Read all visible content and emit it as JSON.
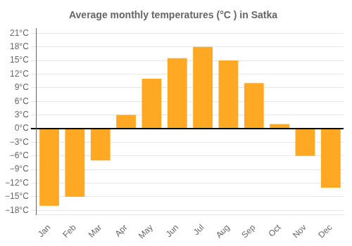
{
  "chart_data": {
    "type": "bar",
    "title": "Average monthly temperatures (°C ) in Satka",
    "categories": [
      "Jan",
      "Feb",
      "Mar",
      "Apr",
      "May",
      "Jun",
      "Jul",
      "Aug",
      "Sep",
      "Oct",
      "Nov",
      "Dec"
    ],
    "values": [
      -17,
      -15,
      -7,
      3,
      11,
      15.5,
      18,
      15,
      10,
      1,
      -6,
      -13
    ],
    "color": "#FFA824",
    "ylim": [
      -19,
      22
    ],
    "yticks": [
      {
        "value": -18,
        "label": "−18°C"
      },
      {
        "value": -15,
        "label": "−15°C"
      },
      {
        "value": -12,
        "label": "−12°C"
      },
      {
        "value": -9,
        "label": "−9°C"
      },
      {
        "value": -6,
        "label": "−6°C"
      },
      {
        "value": -3,
        "label": "−3°C"
      },
      {
        "value": 0,
        "label": "0°C"
      },
      {
        "value": 3,
        "label": "3°C"
      },
      {
        "value": 6,
        "label": "6°C"
      },
      {
        "value": 9,
        "label": "9°C"
      },
      {
        "value": 12,
        "label": "12°C"
      },
      {
        "value": 15,
        "label": "15°C"
      },
      {
        "value": 18,
        "label": "18°C"
      },
      {
        "value": 21,
        "label": "21°C"
      }
    ],
    "grid": true
  }
}
